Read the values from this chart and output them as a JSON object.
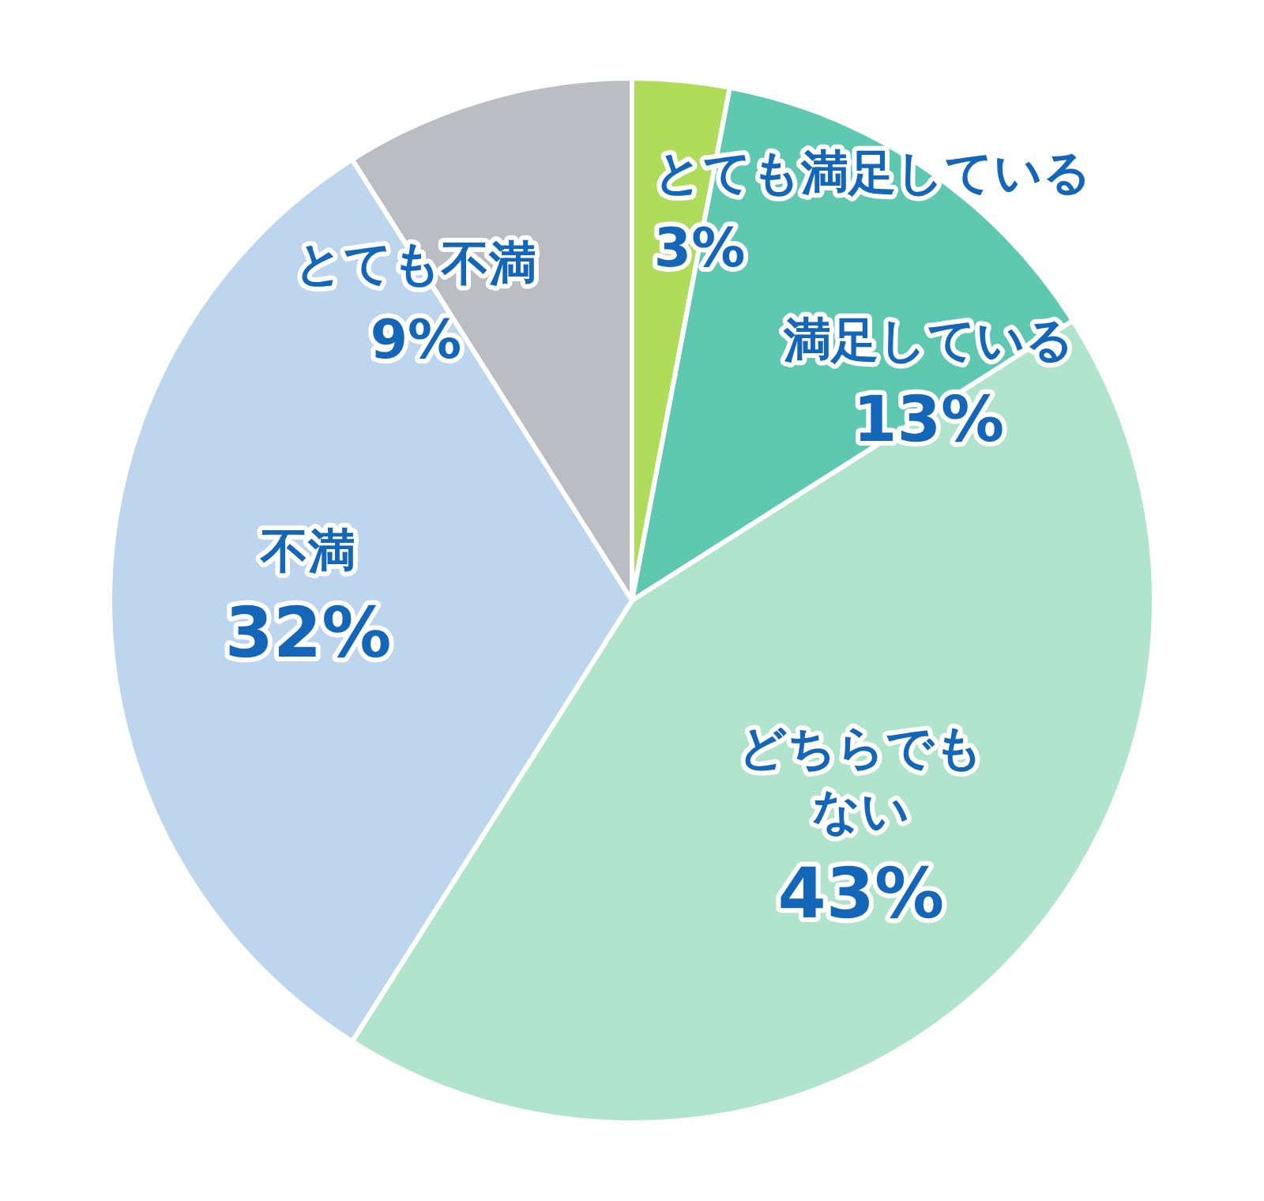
{
  "chart_data": {
    "type": "pie",
    "categories": [
      "とても満足している",
      "満足している",
      "どちらでもない",
      "不満",
      "とても不満"
    ],
    "values": [
      3,
      13,
      43,
      32,
      9
    ],
    "value_labels": [
      "3%",
      "13%",
      "43%",
      "32%",
      "9%"
    ],
    "colors": [
      "#b0dc5c",
      "#5ec8b0",
      "#b1e4cc",
      "#bdd6ee",
      "#bcbdc2"
    ],
    "legend": false
  }
}
